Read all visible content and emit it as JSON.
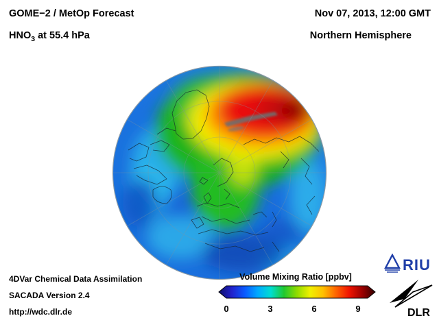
{
  "header": {
    "title": "GOME−2 / MetOp Forecast",
    "species_prefix": "HNO",
    "species_sub": "3",
    "species_suffix": " at 55.4 hPa",
    "datetime": "Nov 07, 2013, 12:00 GMT",
    "region": "Northern Hemisphere"
  },
  "footer": {
    "line1": "4DVar Chemical Data Assimilation",
    "line2": "SACADA Version 2.4",
    "line3": "http://wdc.dlr.de"
  },
  "colorbar": {
    "title": "Volume Mixing Ratio [ppbv]",
    "ticks": [
      "0",
      "3",
      "6",
      "9"
    ],
    "gradient": [
      "#10106a",
      "#2222cc",
      "#0a5aff",
      "#00aaff",
      "#00ddd0",
      "#20c830",
      "#90dc00",
      "#f0f000",
      "#ffc000",
      "#ff6400",
      "#f01400",
      "#9c0000",
      "#320000"
    ]
  },
  "logos": {
    "riu": "RIU",
    "dlr": "DLR"
  },
  "map": {
    "description": "Northern Hemisphere polar orthographic view of HNO3 volume mixing ratio: maximum (dark red, >9 ppbv) over the Arctic near the pole, decreasing through orange, yellow and green over Greenland, northern Europe and Siberia, to blue/cyan (low values) at mid and low latitudes; small gray data gap streak near the pole."
  }
}
